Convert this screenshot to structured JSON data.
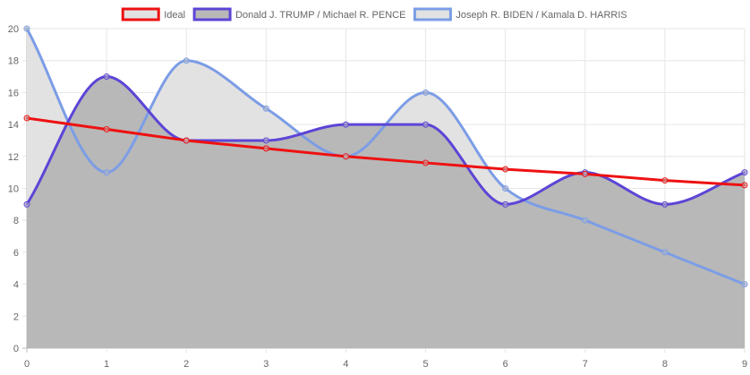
{
  "chart_data": {
    "type": "line",
    "title": "",
    "xlabel": "",
    "ylabel": "",
    "x": [
      0,
      1,
      2,
      3,
      4,
      5,
      6,
      7,
      8,
      9
    ],
    "xlim": [
      0,
      9
    ],
    "ylim": [
      0,
      20
    ],
    "y_ticks": [
      0,
      2,
      4,
      6,
      8,
      10,
      12,
      14,
      16,
      18,
      20
    ],
    "grid": true,
    "legend_position": "top",
    "series": [
      {
        "name": "Ideal",
        "values": [
          14.4,
          13.7,
          13.0,
          12.5,
          12.0,
          11.6,
          11.2,
          10.9,
          10.5,
          10.2
        ],
        "color": "#ee1111",
        "fill": "none",
        "smooth": false
      },
      {
        "name": "Donald J. TRUMP / Michael R. PENCE",
        "values": [
          9,
          17,
          13,
          13,
          14,
          14,
          9,
          11,
          9,
          11
        ],
        "color": "#5b45d6",
        "fill": "#b8b8b8",
        "smooth": true
      },
      {
        "name": "Joseph R. BIDEN / Kamala D. HARRIS",
        "values": [
          20,
          11,
          18,
          15,
          12,
          16,
          10,
          8,
          6,
          4
        ],
        "color": "#7c9de6",
        "fill": "#e2e2e2",
        "smooth": true
      }
    ]
  }
}
